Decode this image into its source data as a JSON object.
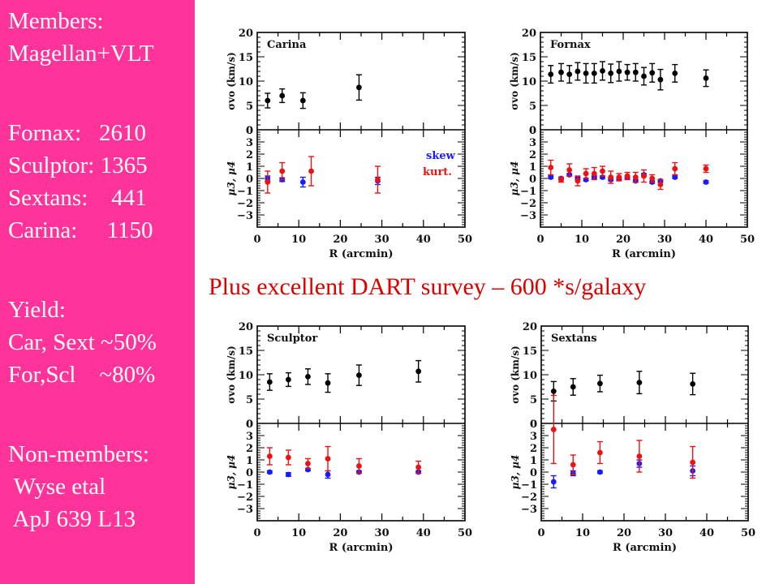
{
  "sidebar": {
    "lines": [
      "Members:",
      "Magellan+VLT",
      "",
      "Fornax:   2610",
      "Sculptor: 1365",
      "Sextans:    441",
      "Carina:     1150",
      "",
      "Yield:",
      "Car, Sext ~50%",
      "For,Scl    ~80%",
      "",
      "Non-members:",
      " Wyse etal",
      " ApJ 639 L13"
    ],
    "background": "#ff3399"
  },
  "banner": {
    "text": "Plus excellent DART survey – 600 *s/galaxy",
    "color": "#dd0000"
  },
  "colors": {
    "dispersion": "#000000",
    "skew": "#1a1aff",
    "kurt": "#ee1111"
  },
  "chart_data": [
    {
      "type": "scatter",
      "title": "Carina",
      "xlabel": "R (arcmin)",
      "xlim": [
        0,
        50
      ],
      "xticks": [
        0,
        10,
        20,
        30,
        40,
        50
      ],
      "top": {
        "ylabel": "σvo (km/s)",
        "ylim": [
          0,
          20
        ],
        "yticks": [
          0,
          5,
          10,
          15,
          20
        ],
        "series": [
          {
            "name": "dispersion",
            "x": [
              2.5,
              6,
              11,
              24.5
            ],
            "y": [
              6,
              7,
              6,
              8.7
            ],
            "err": [
              1.5,
              1.4,
              1.6,
              2.6
            ]
          }
        ]
      },
      "bottom": {
        "ylabel": "μ3, μ4",
        "ylim": [
          -4,
          4
        ],
        "yticks": [
          -3,
          -2,
          -1,
          0,
          1,
          2,
          3
        ],
        "legend": [
          "skew",
          "kurt."
        ],
        "series": [
          {
            "name": "skew",
            "x": [
              2.5,
              6,
              11,
              29
            ],
            "y": [
              0,
              -0.1,
              -0.3,
              -0.2
            ],
            "err": [
              0.2,
              0.15,
              0.4,
              0.3
            ]
          },
          {
            "name": "kurt",
            "x": [
              2.5,
              6,
              13,
              29
            ],
            "y": [
              -0.3,
              0.6,
              0.6,
              -0.1
            ],
            "err": [
              0.9,
              0.7,
              1.2,
              1.1
            ]
          }
        ]
      }
    },
    {
      "type": "scatter",
      "title": "Fornax",
      "xlabel": "R (arcmin)",
      "xlim": [
        0,
        50
      ],
      "xticks": [
        0,
        10,
        20,
        30,
        40,
        50
      ],
      "top": {
        "ylabel": "σvo (km/s)",
        "ylim": [
          0,
          20
        ],
        "yticks": [
          0,
          5,
          10,
          15,
          20
        ],
        "series": [
          {
            "name": "dispersion",
            "x": [
              2.5,
              5,
              7,
              9,
              11,
              13,
              15,
              17,
              19,
              21,
              23,
              25,
              27,
              29,
              32.5,
              40
            ],
            "y": [
              11.4,
              11.8,
              11.4,
              12,
              11.6,
              11.6,
              12.1,
              11.6,
              12,
              11.8,
              11.8,
              11,
              11.7,
              10.3,
              11.6,
              10.6
            ],
            "err": [
              1.8,
              1.8,
              1.8,
              1.8,
              2,
              2,
              1.9,
              1.9,
              2,
              1.6,
              1.8,
              1.8,
              1.9,
              2.1,
              1.8,
              1.7
            ]
          }
        ]
      },
      "bottom": {
        "ylabel": "μ3, μ4",
        "ylim": [
          -4,
          4
        ],
        "yticks": [
          -3,
          -2,
          -1,
          0,
          1,
          2,
          3
        ],
        "series": [
          {
            "name": "skew",
            "x": [
              2.5,
              5,
              7,
              9,
              11,
              13,
              15,
              17,
              19,
              21,
              23,
              25,
              27,
              29,
              32.5,
              40
            ],
            "y": [
              0.1,
              0,
              0.3,
              0,
              -0.1,
              0.1,
              0.1,
              -0.1,
              0,
              0.1,
              -0.2,
              0.3,
              -0.3,
              -0.2,
              0.1,
              -0.3
            ],
            "err": [
              0.1,
              0.1,
              0.1,
              0.1,
              0.1,
              0.1,
              0.1,
              0.1,
              0.1,
              0.1,
              0.1,
              0.1,
              0.1,
              0.1,
              0.1,
              0.1
            ]
          },
          {
            "name": "kurt",
            "x": [
              2.5,
              5,
              7,
              9,
              11,
              13,
              15,
              17,
              19,
              21,
              23,
              25,
              27,
              29,
              32.5,
              40
            ],
            "y": [
              0.9,
              -0.1,
              0.7,
              -0.2,
              0.4,
              0.4,
              0.6,
              0.1,
              0.1,
              0.2,
              0.1,
              0.2,
              0,
              -0.5,
              0.8,
              0.8
            ],
            "err": [
              0.6,
              0.2,
              0.5,
              0.4,
              0.4,
              0.5,
              0.4,
              0.5,
              0.3,
              0.3,
              0.4,
              0.5,
              0.3,
              0.4,
              0.5,
              0.3
            ]
          }
        ]
      }
    },
    {
      "type": "scatter",
      "title": "Sculptor",
      "xlabel": "R (arcmin)",
      "xlim": [
        0,
        50
      ],
      "xticks": [
        0,
        10,
        20,
        30,
        40,
        50
      ],
      "top": {
        "ylabel": "σvo (km/s)",
        "ylim": [
          0,
          20
        ],
        "yticks": [
          0,
          5,
          10,
          15,
          20
        ],
        "series": [
          {
            "name": "dispersion",
            "x": [
              3,
              7.5,
              12.2,
              17,
              24.5,
              38.8
            ],
            "y": [
              8.5,
              9,
              9.6,
              8.3,
              9.9,
              10.7
            ],
            "err": [
              1.7,
              1.4,
              1.6,
              1.9,
              2.1,
              2.2
            ]
          }
        ]
      },
      "bottom": {
        "ylabel": "μ3, μ4",
        "ylim": [
          -4,
          4
        ],
        "yticks": [
          -3,
          -2,
          -1,
          0,
          1,
          2,
          3
        ],
        "series": [
          {
            "name": "skew",
            "x": [
              3,
              7.5,
              12.2,
              17,
              24.5,
              38.8
            ],
            "y": [
              0,
              -0.2,
              0.2,
              -0.2,
              0,
              0
            ],
            "err": [
              0.1,
              0.15,
              0.1,
              0.3,
              0.1,
              0.1
            ]
          },
          {
            "name": "kurt",
            "x": [
              3,
              7.5,
              12.2,
              17,
              24.5,
              38.8
            ],
            "y": [
              1.3,
              1.2,
              0.7,
              1.1,
              0.5,
              0.4
            ],
            "err": [
              0.7,
              0.6,
              0.4,
              1.0,
              0.6,
              0.5
            ]
          }
        ]
      }
    },
    {
      "type": "scatter",
      "title": "Sextans",
      "xlabel": "R (arcmin)",
      "xlim": [
        0,
        50
      ],
      "xticks": [
        0,
        10,
        20,
        30,
        40,
        50
      ],
      "top": {
        "ylabel": "σvo (km/s)",
        "ylim": [
          0,
          20
        ],
        "yticks": [
          0,
          5,
          10,
          15,
          20
        ],
        "series": [
          {
            "name": "dispersion",
            "x": [
              3,
              7.7,
              14.2,
              23.7,
              36.6
            ],
            "y": [
              6.6,
              7.5,
              8.2,
              8.4,
              8.1
            ],
            "err": [
              2,
              1.7,
              1.7,
              2.3,
              2.2
            ]
          }
        ]
      },
      "bottom": {
        "ylabel": "μ3, μ4",
        "ylim": [
          -4,
          4
        ],
        "yticks": [
          -3,
          -2,
          -1,
          0,
          1,
          2,
          3
        ],
        "series": [
          {
            "name": "skew",
            "x": [
              3,
              7.7,
              14.2,
              23.7,
              36.6
            ],
            "y": [
              -0.8,
              -0.1,
              0,
              0.7,
              0.1
            ],
            "err": [
              0.5,
              0.2,
              0.1,
              0.3,
              0.4
            ]
          },
          {
            "name": "kurt",
            "x": [
              3,
              7.7,
              14.2,
              23.7,
              36.6
            ],
            "y": [
              3.5,
              0.6,
              1.6,
              1.3,
              0.8
            ],
            "err": [
              2.8,
              0.8,
              0.9,
              1.3,
              1.3
            ]
          }
        ]
      }
    }
  ]
}
